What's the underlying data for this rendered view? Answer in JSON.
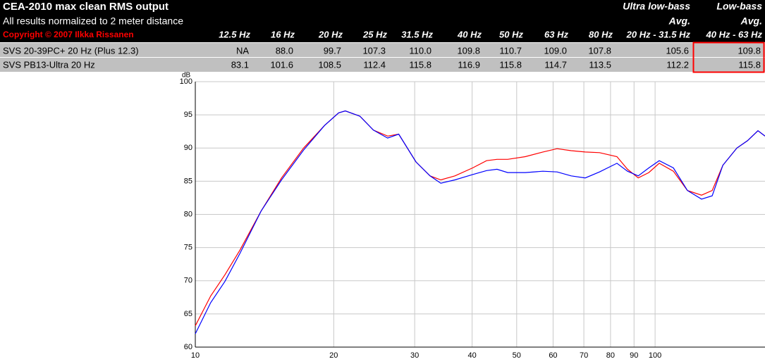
{
  "table": {
    "title": "CEA-2010 max clean RMS output",
    "subtitle": "All results normalized to 2 meter distance",
    "copyright": "Copyright © 2007 Ilkka Rissanen",
    "group_labels": [
      "Ultra low-bass",
      "Low-bass"
    ],
    "group_sublabels": [
      "Avg.",
      "Avg."
    ],
    "columns": [
      "12.5 Hz",
      "16 Hz",
      "20 Hz",
      "25 Hz",
      "31.5 Hz",
      "40 Hz",
      "50 Hz",
      "63 Hz",
      "80 Hz",
      "20 Hz - 31.5 Hz",
      "40 Hz - 63 Hz"
    ],
    "rows": [
      {
        "name": "SVS 20-39PC+ 20 Hz (Plus 12.3)",
        "values": [
          "NA",
          "88.0",
          "99.7",
          "107.3",
          "110.0",
          "109.8",
          "110.7",
          "109.0",
          "107.8",
          "105.6",
          "109.8"
        ]
      },
      {
        "name": "SVS PB13-Ultra 20 Hz",
        "values": [
          "83.1",
          "101.6",
          "108.5",
          "112.4",
          "115.8",
          "116.9",
          "115.8",
          "114.7",
          "113.5",
          "112.2",
          "115.8"
        ]
      }
    ]
  },
  "chart_data": {
    "type": "line",
    "y_label": "dB",
    "xscale": "log",
    "grid": true,
    "xlim": [
      10,
      173.4
    ],
    "ylim": [
      60,
      100
    ],
    "xticks": [
      10,
      20,
      30,
      40,
      50,
      60,
      70,
      80,
      90,
      100
    ],
    "yticks": [
      60,
      65,
      70,
      75,
      80,
      85,
      90,
      95,
      100
    ],
    "x": [
      10,
      10.8,
      11.6,
      12.5,
      13.9,
      15.4,
      17.2,
      19.1,
      20.5,
      21.2,
      22.8,
      24.4,
      26.2,
      27.7,
      30.2,
      32.4,
      34.2,
      36.7,
      40.1,
      43.0,
      45.3,
      47.8,
      52.2,
      57.0,
      61.2,
      65.7,
      70.5,
      75.7,
      82.6,
      87.1,
      91.9,
      96.9,
      102.1,
      109.6,
      117.6,
      126.2,
      133.1,
      140.4,
      150.6,
      158.8,
      167.4,
      173.4
    ],
    "series": [
      {
        "color": "#ff0000",
        "values": [
          63.2,
          67.7,
          70.9,
          74.6,
          80.5,
          85.5,
          90.0,
          93.4,
          95.3,
          95.6,
          94.8,
          92.7,
          91.8,
          92.1,
          87.9,
          85.8,
          85.2,
          85.8,
          87.0,
          88.1,
          88.3,
          88.3,
          88.7,
          89.4,
          89.9,
          89.6,
          89.4,
          89.3,
          88.7,
          86.8,
          85.5,
          86.3,
          87.7,
          86.5,
          83.6,
          82.9,
          83.6,
          87.4,
          90.0,
          91.1,
          92.6,
          91.8
        ]
      },
      {
        "color": "#0000ff",
        "values": [
          62.0,
          66.7,
          69.9,
          74.1,
          80.5,
          85.2,
          89.7,
          93.4,
          95.3,
          95.6,
          94.8,
          92.7,
          91.5,
          92.1,
          87.9,
          85.8,
          84.7,
          85.2,
          86.0,
          86.6,
          86.8,
          86.3,
          86.3,
          86.5,
          86.4,
          85.8,
          85.5,
          86.4,
          87.7,
          86.5,
          85.8,
          87.0,
          88.1,
          87.0,
          83.6,
          82.3,
          82.8,
          87.4,
          90.0,
          91.1,
          92.6,
          91.8
        ]
      }
    ]
  }
}
